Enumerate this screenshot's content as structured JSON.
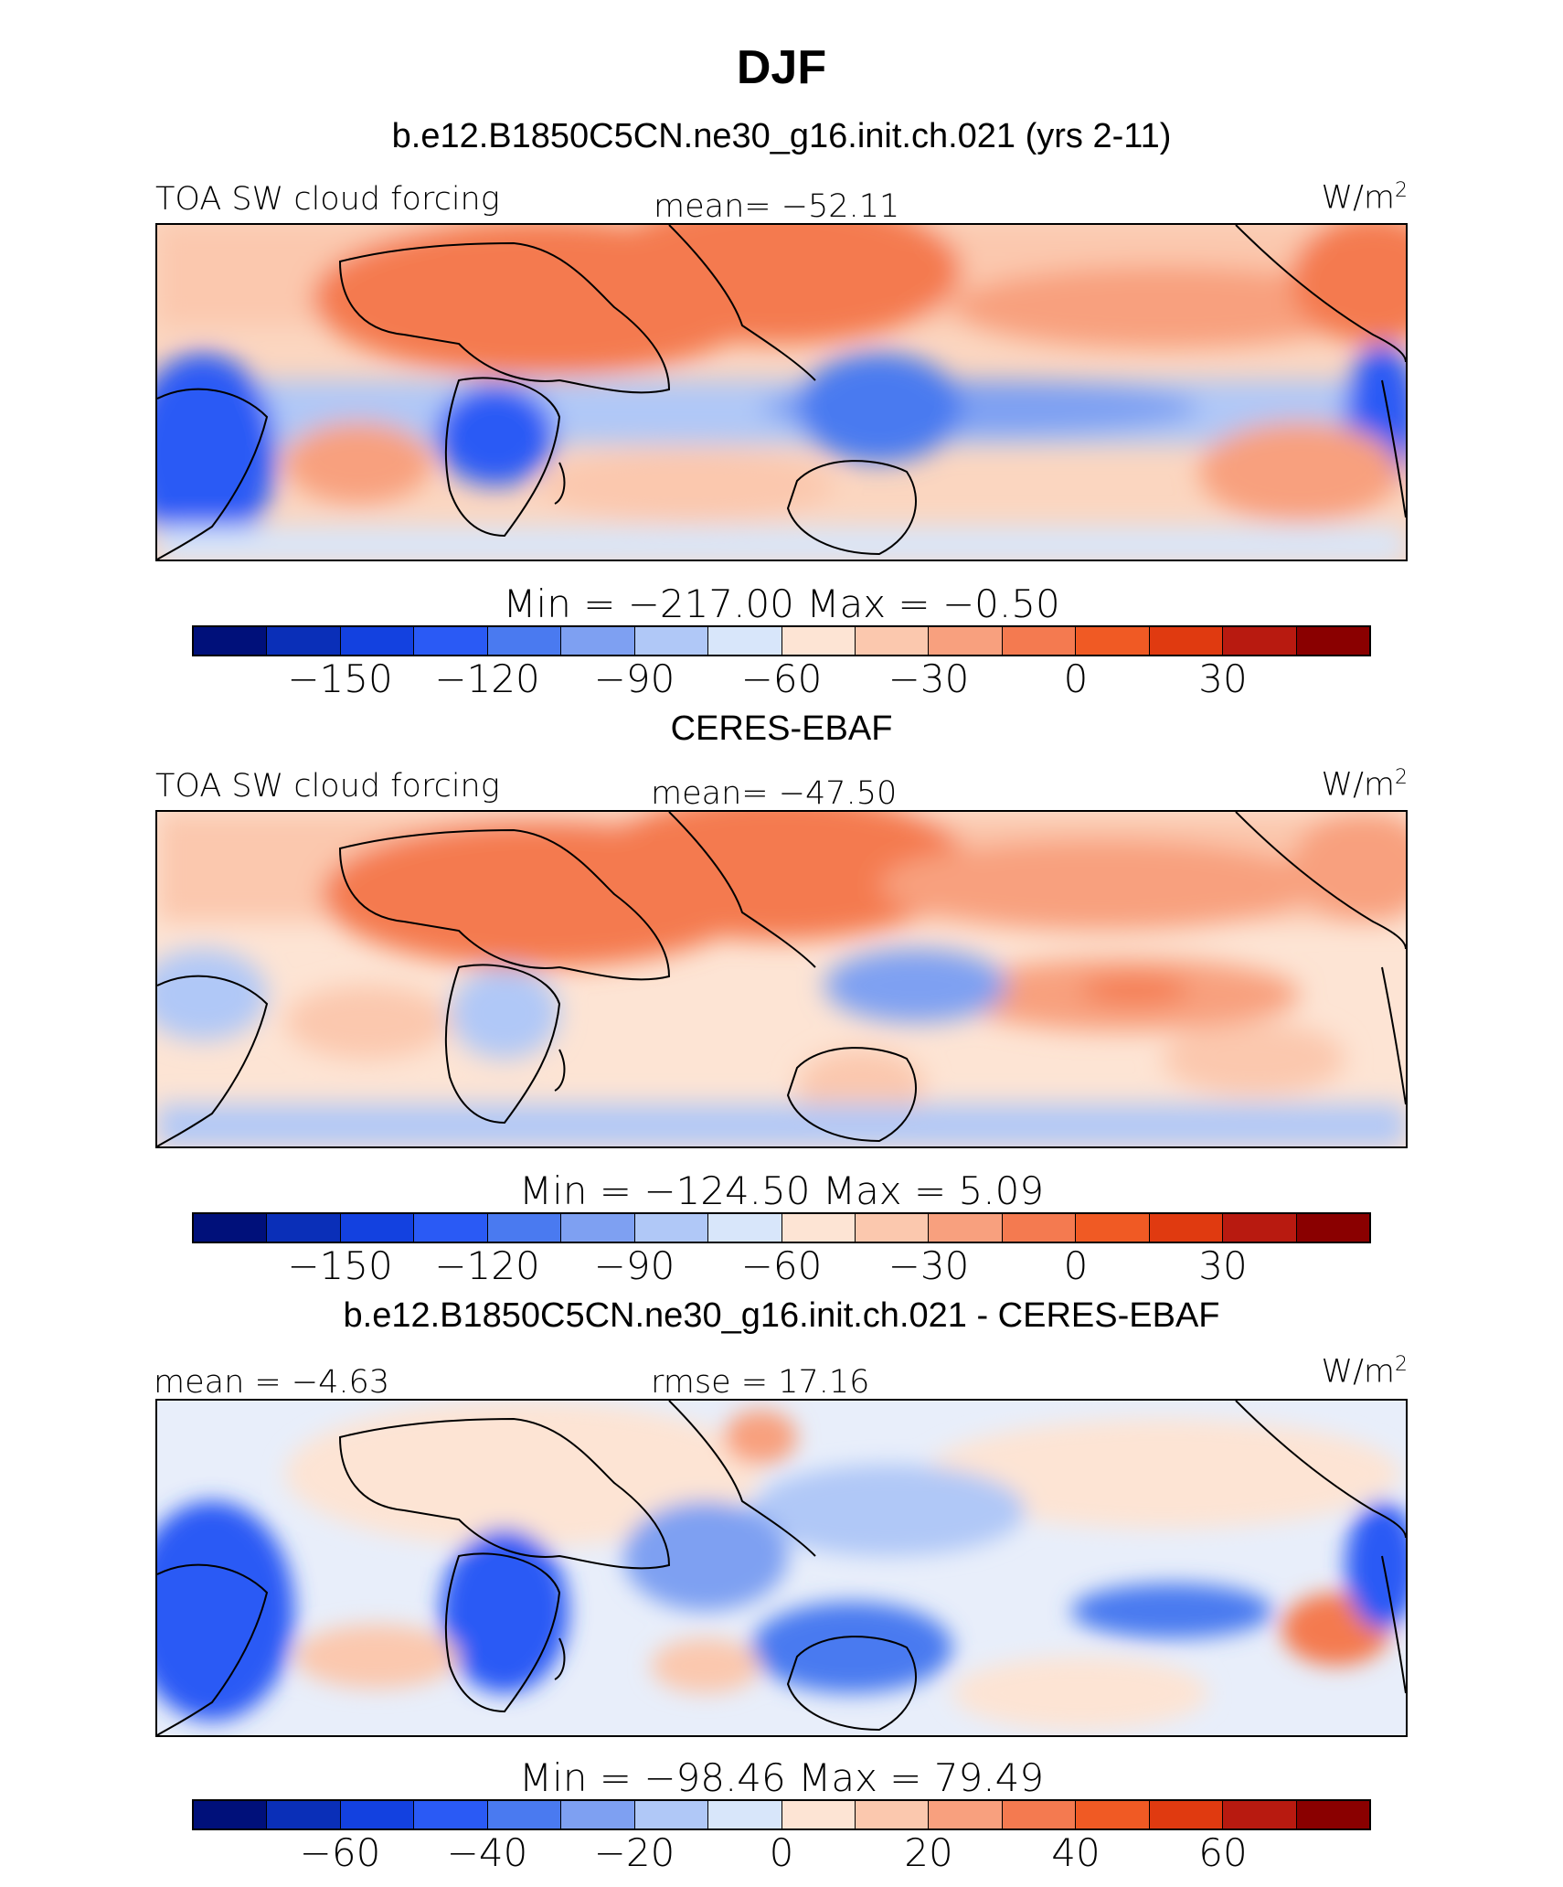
{
  "figure": {
    "title": "DJF"
  },
  "colors": {
    "abs_scale": [
      "#00107a",
      "#0a2fb8",
      "#1341e0",
      "#2a5af5",
      "#4a7af0",
      "#7ea0f2",
      "#b0c8f7",
      "#d8e6fa",
      "#fde4d4",
      "#fbc8ae",
      "#f8a07e",
      "#f47a50",
      "#f05a24",
      "#e03a10",
      "#b81a10",
      "#8a0000"
    ],
    "diff_scale": [
      "#00107a",
      "#0a2fb8",
      "#1341e0",
      "#2a5af5",
      "#4a7af0",
      "#7ea0f2",
      "#b0c8f7",
      "#d8e6fa",
      "#fde4d4",
      "#fbc8ae",
      "#f8a07e",
      "#f47a50",
      "#f05a24",
      "#e03a10",
      "#b81a10",
      "#8a0000"
    ]
  },
  "panels": [
    {
      "title": "b.e12.B1850C5CN.ne30_g16.init.ch.021 (yrs 2-11)",
      "left_label": "TOA SW cloud forcing",
      "center_label": "mean= −52.11",
      "units": "W/m",
      "units_sup": "2",
      "minmax": "Min  =  −217.00  Max  =    −0.50",
      "ticks": [
        "−150",
        "−120",
        "−90",
        "−60",
        "−30",
        "0",
        "30"
      ]
    },
    {
      "title": "CERES-EBAF",
      "left_label": "TOA SW cloud forcing",
      "center_label": "mean= −47.50",
      "units": "W/m",
      "units_sup": "2",
      "minmax": "Min  =  −124.50  Max  =     5.09",
      "ticks": [
        "−150",
        "−120",
        "−90",
        "−60",
        "−30",
        "0",
        "30"
      ]
    },
    {
      "title": "b.e12.B1850C5CN.ne30_g16.init.ch.021 - CERES-EBAF",
      "left_label": "mean  =   −4.63",
      "center_label": "rmse  =   17.16",
      "units": "W/m",
      "units_sup": "2",
      "minmax": "Min  =  −98.46  Max  =   79.49",
      "ticks": [
        "−60",
        "−40",
        "−20",
        "0",
        "20",
        "40",
        "60"
      ]
    }
  ],
  "chart_data": [
    {
      "type": "heatmap",
      "title": "b.e12.B1850C5CN.ne30_g16.init.ch.021 (yrs 2-11)",
      "variable": "TOA SW cloud forcing",
      "units": "W/m2",
      "mean": -52.11,
      "min": -217.0,
      "max": -0.5,
      "colorbar_levels": [
        -165,
        -150,
        -135,
        -120,
        -105,
        -90,
        -75,
        -60,
        -45,
        -30,
        -15,
        0,
        15,
        30,
        45
      ],
      "colorbar_ticks": [
        -150,
        -120,
        -90,
        -60,
        -30,
        0,
        30
      ]
    },
    {
      "type": "heatmap",
      "title": "CERES-EBAF",
      "variable": "TOA SW cloud forcing",
      "units": "W/m2",
      "mean": -47.5,
      "min": -124.5,
      "max": 5.09,
      "colorbar_levels": [
        -165,
        -150,
        -135,
        -120,
        -105,
        -90,
        -75,
        -60,
        -45,
        -30,
        -15,
        0,
        15,
        30,
        45
      ],
      "colorbar_ticks": [
        -150,
        -120,
        -90,
        -60,
        -30,
        0,
        30
      ]
    },
    {
      "type": "heatmap",
      "title": "b.e12.B1850C5CN.ne30_g16.init.ch.021 - CERES-EBAF",
      "units": "W/m2",
      "mean": -4.63,
      "rmse": 17.16,
      "min": -98.46,
      "max": 79.49,
      "colorbar_levels": [
        -70,
        -60,
        -50,
        -40,
        -30,
        -20,
        -10,
        0,
        10,
        20,
        30,
        40,
        50,
        60,
        70
      ],
      "colorbar_ticks": [
        -60,
        -40,
        -20,
        0,
        20,
        40,
        60
      ]
    }
  ]
}
